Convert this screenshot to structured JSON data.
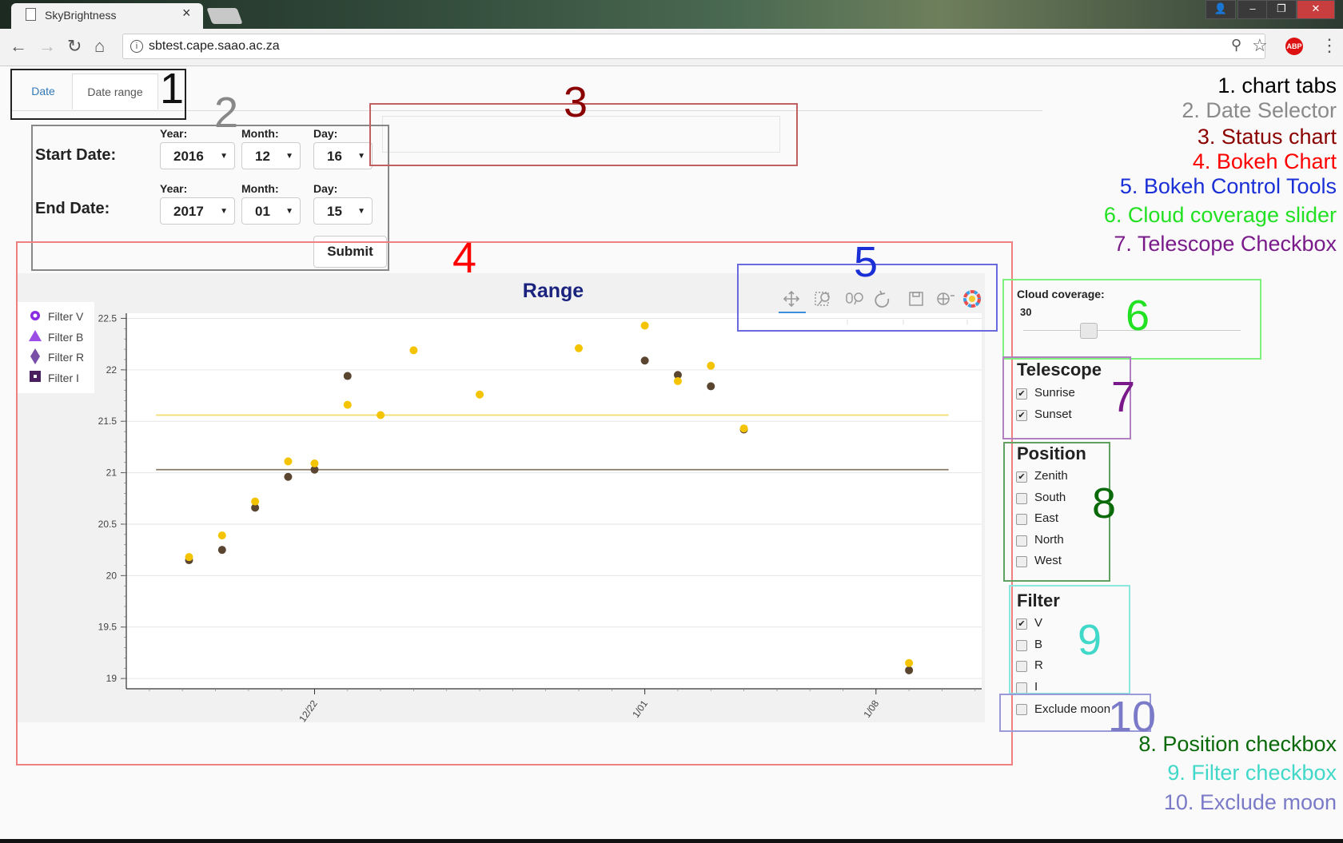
{
  "browser": {
    "tab_title": "SkyBrightness",
    "tab_close": "×",
    "url": "sbtest.cape.saao.ac.za",
    "abp": "ABP",
    "nav": {
      "back": "←",
      "forward": "→",
      "reload": "↻",
      "home": "⌂",
      "zoom": "⚲",
      "star": "☆",
      "menu": "⋮"
    }
  },
  "tabs": [
    {
      "label": "Date"
    },
    {
      "label": "Date range"
    }
  ],
  "date_selector": {
    "start_label": "Start Date:",
    "end_label": "End Date:",
    "year_label": "Year:",
    "month_label": "Month:",
    "day_label": "Day:",
    "start": {
      "year": "2016",
      "month": "12",
      "day": "16"
    },
    "end": {
      "year": "2017",
      "month": "01",
      "day": "15"
    },
    "submit": "Submit"
  },
  "chart_data": {
    "type": "scatter",
    "title": "Range",
    "xlabel": "",
    "ylabel": "",
    "x_tick_labels": [
      "12/22",
      "1/01",
      "1/08"
    ],
    "y_ticks": [
      "22.5",
      "22",
      "21.5",
      "21",
      "20.5",
      "20",
      "19.5",
      "19"
    ],
    "ylim": [
      18.9,
      22.55
    ],
    "xlim": [
      16.3,
      42.2
    ],
    "x_ticks": [
      22,
      32,
      39
    ],
    "legend": [
      {
        "label": "Filter V",
        "marker": "circle",
        "color": "#8a2be2"
      },
      {
        "label": "Filter B",
        "marker": "triangle",
        "color": "#9b4de6"
      },
      {
        "label": "Filter R",
        "marker": "diamond",
        "color": "#7a4fa8"
      },
      {
        "label": "Filter I",
        "marker": "square",
        "color": "#4a1f5e"
      }
    ],
    "legend_position": "top-left",
    "series": [
      {
        "color": "#f5c400",
        "points": [
          [
            18.2,
            20.18
          ],
          [
            19.2,
            20.39
          ],
          [
            20.2,
            20.72
          ],
          [
            21.2,
            21.11
          ],
          [
            22.0,
            21.09
          ],
          [
            23.0,
            21.66
          ],
          [
            24.0,
            21.56
          ],
          [
            25.0,
            22.19
          ],
          [
            27.0,
            21.76
          ],
          [
            30.0,
            22.21
          ],
          [
            32.0,
            22.43
          ],
          [
            33.0,
            21.89
          ],
          [
            34.0,
            22.04
          ],
          [
            35.0,
            21.43
          ],
          [
            40.0,
            19.15
          ]
        ]
      },
      {
        "color": "#5a4630",
        "points": [
          [
            18.2,
            20.15
          ],
          [
            19.2,
            20.25
          ],
          [
            20.2,
            20.66
          ],
          [
            21.2,
            20.96
          ],
          [
            22.0,
            21.03
          ],
          [
            23.0,
            21.94
          ],
          [
            32.0,
            22.09
          ],
          [
            33.0,
            21.95
          ],
          [
            34.0,
            21.84
          ],
          [
            35.0,
            21.42
          ],
          [
            40.0,
            19.08
          ]
        ]
      }
    ],
    "reference_lines": [
      {
        "y": 21.56,
        "color": "#f3dc6a"
      },
      {
        "y": 21.03,
        "color": "#8a7a66"
      }
    ],
    "x_line_range": [
      17.2,
      41.2
    ],
    "grid": true
  },
  "toolbar": {
    "tools": [
      "pan-tool",
      "box-zoom-tool",
      "wheel-zoom-tool",
      "reset-tool",
      "save-tool",
      "hover-tool",
      "bokeh-logo"
    ]
  },
  "cloud": {
    "label": "Cloud coverage:",
    "value": "30"
  },
  "telescope": {
    "title": "Telescope",
    "items": [
      {
        "label": "Sunrise",
        "checked": true
      },
      {
        "label": "Sunset",
        "checked": true
      }
    ]
  },
  "position": {
    "title": "Position",
    "items": [
      {
        "label": "Zenith",
        "checked": true
      },
      {
        "label": "South",
        "checked": false
      },
      {
        "label": "East",
        "checked": false
      },
      {
        "label": "North",
        "checked": false
      },
      {
        "label": "West",
        "checked": false
      }
    ]
  },
  "filter": {
    "title": "Filter",
    "items": [
      {
        "label": "V",
        "checked": true
      },
      {
        "label": "B",
        "checked": false
      },
      {
        "label": "R",
        "checked": false
      },
      {
        "label": "I",
        "checked": false
      }
    ]
  },
  "exclude_moon": {
    "label": "Exclude moon",
    "checked": false
  },
  "annotations": {
    "numbers": [
      "1",
      "2",
      "3",
      "4",
      "5",
      "6",
      "7",
      "8",
      "9",
      "10"
    ],
    "notes": [
      {
        "text": "1. chart tabs",
        "color": "#000000"
      },
      {
        "text": "2. Date Selector",
        "color": "#8a8a8a"
      },
      {
        "text": "3. Status chart",
        "color": "#8b0000"
      },
      {
        "text": "4. Bokeh Chart",
        "color": "#ff0000"
      },
      {
        "text": "5. Bokeh Control Tools",
        "color": "#1a2fd6"
      },
      {
        "text": "6. Cloud coverage slider",
        "color": "#22e022"
      },
      {
        "text": "7. Telescope Checkbox",
        "color": "#7a1a8a"
      },
      {
        "text": "8. Position checkbox",
        "color": "#0a6a0a"
      },
      {
        "text": "9. Filter checkbox",
        "color": "#40d8c8"
      },
      {
        "text": "10. Exclude moon",
        "color": "#7a7ac8"
      }
    ]
  }
}
